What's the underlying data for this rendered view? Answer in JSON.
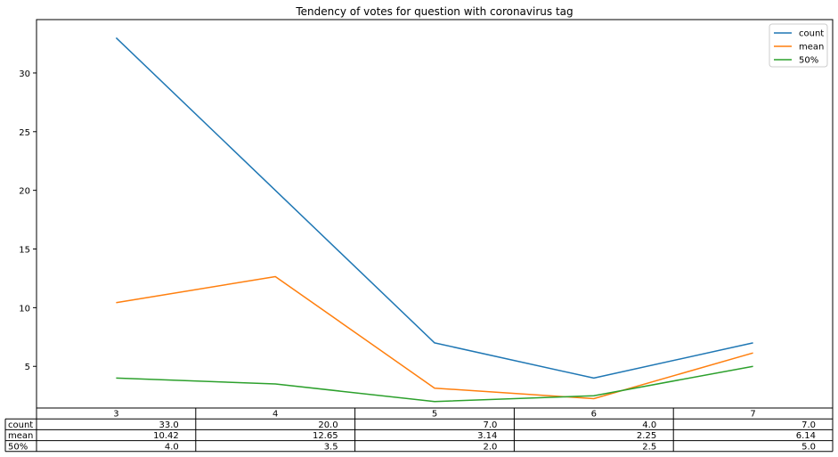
{
  "chart_data": {
    "type": "line",
    "title": "Tendency of votes for question with coronavirus tag",
    "xlabel": "",
    "ylabel": "",
    "categories": [
      "3",
      "4",
      "5",
      "6",
      "7"
    ],
    "series": [
      {
        "name": "count",
        "color": "#1f77b4",
        "values": [
          33.0,
          20.0,
          7.0,
          4.0,
          7.0
        ],
        "labels": [
          "33.0",
          "20.0",
          "7.0",
          "4.0",
          "7.0"
        ]
      },
      {
        "name": "mean",
        "color": "#ff7f0e",
        "values": [
          10.42,
          12.65,
          3.14,
          2.25,
          6.14
        ],
        "labels": [
          "10.42",
          "12.65",
          "3.14",
          "2.25",
          "6.14"
        ]
      },
      {
        "name": "50%",
        "color": "#2ca02c",
        "values": [
          4.0,
          3.5,
          2.0,
          2.5,
          5.0
        ],
        "labels": [
          "4.0",
          "3.5",
          "2.0",
          "2.5",
          "5.0"
        ]
      }
    ],
    "ylim": [
      1.45,
      34.55
    ],
    "yticks": [
      5,
      10,
      15,
      20,
      25,
      30
    ],
    "grid": false,
    "legend": "top-right",
    "table": true
  }
}
